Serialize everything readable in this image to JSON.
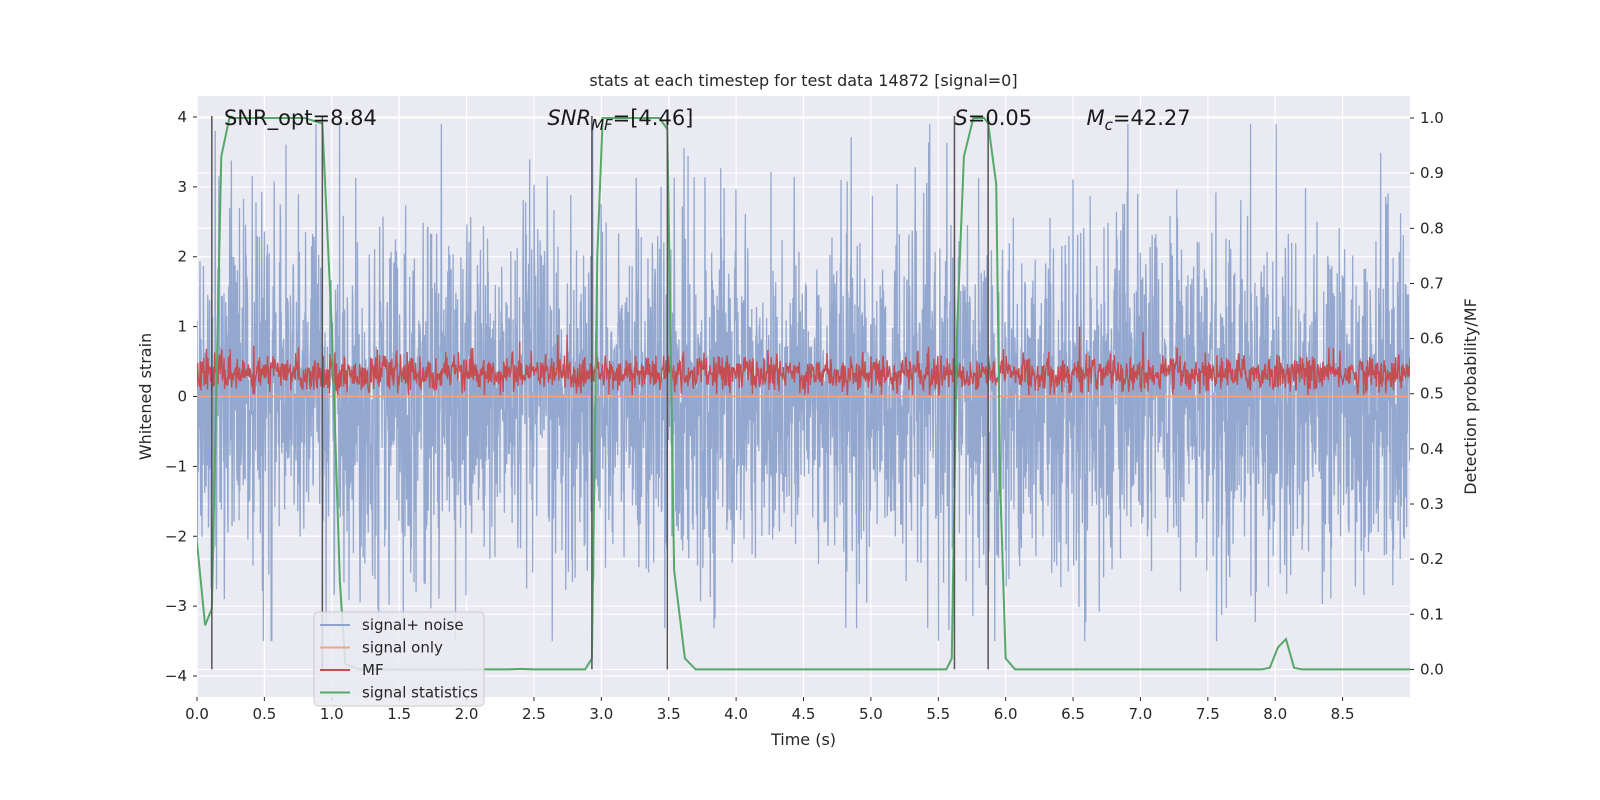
{
  "chart_data": {
    "type": "line",
    "title": "stats at each timestep for test data 14872 [signal=0]",
    "xlabel": "Time (s)",
    "ylabel_left": "Whitened strain",
    "ylabel_right": "Detection probability/MF",
    "xlim": [
      0,
      9.0
    ],
    "ylim_left": [
      -4.3,
      4.3
    ],
    "ylim_right": [
      -0.05,
      1.04
    ],
    "x_ticks": [
      "0.0",
      "0.5",
      "1.0",
      "1.5",
      "2.0",
      "2.5",
      "3.0",
      "3.5",
      "4.0",
      "4.5",
      "5.0",
      "5.5",
      "6.0",
      "6.5",
      "7.0",
      "7.5",
      "8.0",
      "8.5"
    ],
    "y_ticks_left": [
      "−4",
      "−3",
      "−2",
      "−1",
      "0",
      "1",
      "2",
      "3",
      "4"
    ],
    "y_ticks_right": [
      "0.0",
      "0.1",
      "0.2",
      "0.3",
      "0.4",
      "0.5",
      "0.6",
      "0.7",
      "0.8",
      "0.9",
      "1.0"
    ],
    "grid": true,
    "legend_position": "lower-left",
    "annotations": [
      {
        "text": "SNR_opt=8.84",
        "x": 0.2
      },
      {
        "text_main": "SNR",
        "text_sub": "MF",
        "text_rest": "=[4.46]",
        "x": 2.6
      },
      {
        "text_main": "S",
        "text_sub": "",
        "text_rest": "=0.05",
        "x": 5.62
      },
      {
        "text_main": "M",
        "text_sub": "c",
        "text_rest": "=42.27",
        "x": 6.6
      }
    ],
    "vertical_lines_x": [
      0.11,
      0.93,
      2.93,
      3.49,
      5.62,
      5.87
    ],
    "series": [
      {
        "name": "signal+ noise",
        "color": "#8fa4cc",
        "axis": "left",
        "description_range": [
          -3.5,
          3.9
        ]
      },
      {
        "name": "signal only",
        "color": "#eea48f",
        "axis": "left",
        "x": [
          0.0,
          9.0
        ],
        "y": [
          0.0,
          0.0
        ]
      },
      {
        "name": "MF",
        "color": "#c44e52",
        "axis": "left",
        "center": 0.33
      },
      {
        "name": "signal statistics",
        "color": "#55a868",
        "axis": "right",
        "x": [
          0.0,
          0.06,
          0.11,
          0.18,
          0.24,
          0.4,
          0.6,
          0.8,
          0.93,
          1.0,
          1.06,
          1.1,
          1.2,
          1.5,
          2.0,
          2.3,
          2.4,
          2.5,
          2.6,
          2.88,
          2.93,
          2.97,
          3.01,
          3.1,
          3.3,
          3.43,
          3.49,
          3.54,
          3.62,
          3.7,
          4.0,
          4.5,
          5.0,
          5.5,
          5.56,
          5.6,
          5.64,
          5.69,
          5.76,
          5.84,
          5.87,
          5.93,
          5.96,
          6.0,
          6.07,
          6.5,
          7.0,
          7.5,
          7.9,
          7.96,
          8.02,
          8.08,
          8.14,
          8.2,
          8.5,
          9.0
        ],
        "y": [
          0.23,
          0.08,
          0.11,
          0.93,
          1.0,
          1.0,
          1.0,
          1.0,
          0.99,
          0.62,
          0.16,
          0.01,
          0.0,
          0.0,
          0.0,
          0.0,
          0.001,
          0.0,
          0.0,
          0.0,
          0.02,
          0.75,
          1.0,
          1.0,
          1.0,
          1.0,
          0.98,
          0.18,
          0.02,
          0.0,
          0.0,
          0.0,
          0.0,
          0.0,
          0.0,
          0.02,
          0.62,
          0.93,
          1.0,
          1.0,
          0.99,
          0.88,
          0.33,
          0.02,
          0.0,
          0.0,
          0.0,
          0.0,
          0.0,
          0.003,
          0.04,
          0.055,
          0.003,
          0.0,
          0.0,
          0.0
        ]
      }
    ]
  }
}
